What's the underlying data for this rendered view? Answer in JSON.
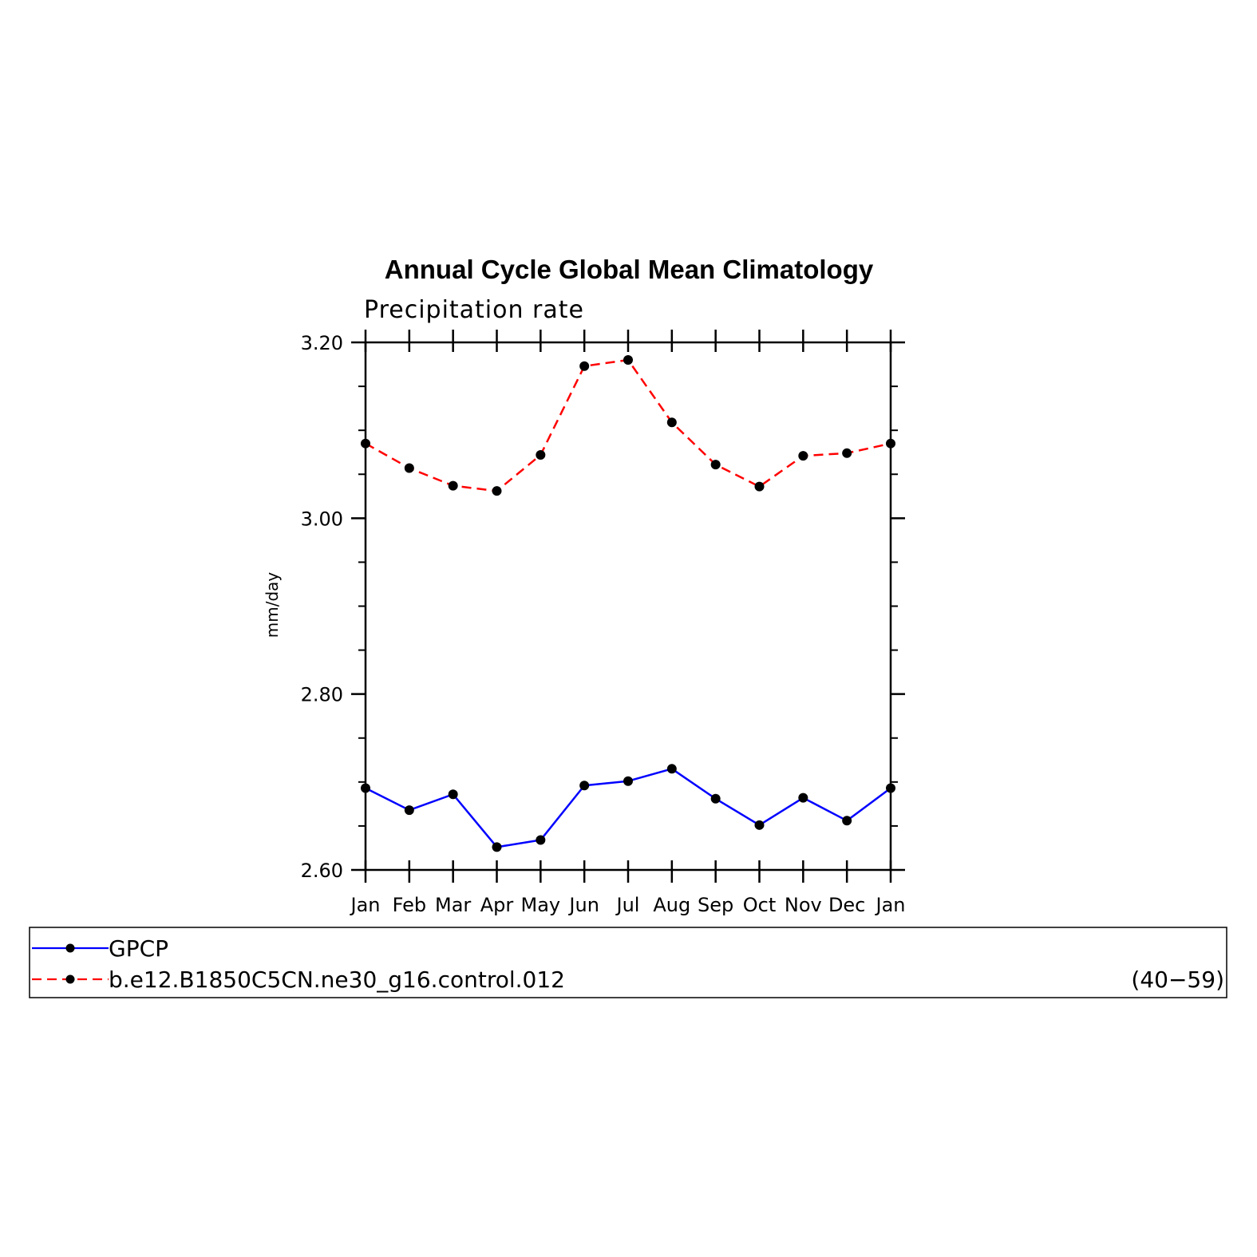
{
  "chart_data": {
    "type": "line",
    "title": "Annual Cycle Global Mean Climatology",
    "subtitle": "Precipitation rate",
    "ylabel": "mm/day",
    "xlabel": "",
    "categories": [
      "Jan",
      "Feb",
      "Mar",
      "Apr",
      "May",
      "Jun",
      "Jul",
      "Aug",
      "Sep",
      "Oct",
      "Nov",
      "Dec",
      "Jan"
    ],
    "ylim": [
      2.6,
      3.2
    ],
    "yticks": [
      2.6,
      2.8,
      3.0,
      3.2
    ],
    "ytick_labels": [
      "2.60",
      "2.80",
      "3.00",
      "3.20"
    ],
    "grid": false,
    "legend_placement": "bottom",
    "series": [
      {
        "name": "GPCP",
        "color": "#0000ff",
        "dash": "solid",
        "marker_color": "#000000",
        "values": [
          2.693,
          2.668,
          2.686,
          2.626,
          2.634,
          2.696,
          2.701,
          2.715,
          2.681,
          2.651,
          2.682,
          2.656,
          2.693
        ]
      },
      {
        "name": "b.e12.B1850C5CN.ne30_g16.control.012",
        "period": "(40−59)",
        "color": "#ff0000",
        "dash": "dashed",
        "marker_color": "#000000",
        "values": [
          3.085,
          3.057,
          3.037,
          3.031,
          3.072,
          3.173,
          3.18,
          3.109,
          3.061,
          3.036,
          3.071,
          3.074,
          3.085
        ]
      }
    ]
  }
}
